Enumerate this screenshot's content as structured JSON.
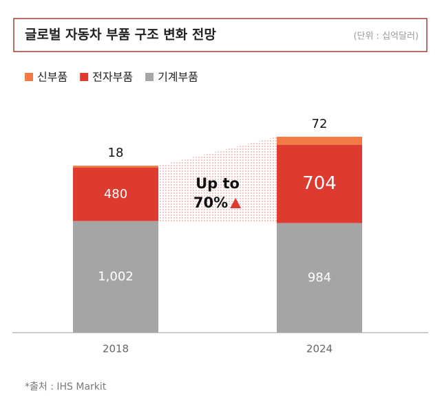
{
  "chart_data": {
    "type": "stacked-bar",
    "title": "글로벌 자동차 부품 구조 변화 전망",
    "subtitle": "(단위 : 십억달러)",
    "categories": [
      "2018",
      "2024"
    ],
    "series": [
      {
        "name": "신부품",
        "color": "#f27a45",
        "values": [
          18,
          72
        ]
      },
      {
        "name": "전자부품",
        "color": "#dd3a30",
        "values": [
          480,
          704
        ]
      },
      {
        "name": "기계부품",
        "color": "#a5a5a5",
        "values": [
          1002,
          984
        ],
        "value_labels": [
          "1,002",
          "984"
        ]
      }
    ],
    "annotation": [
      "Up to",
      "70%"
    ],
    "source": "*출처 : IHS Markit"
  }
}
